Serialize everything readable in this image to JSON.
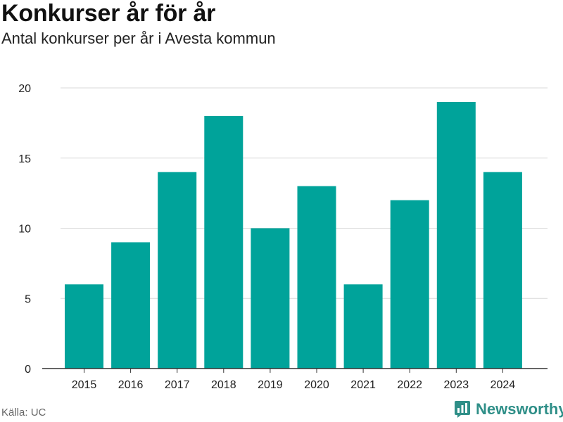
{
  "title": "Konkurser år för år",
  "subtitle": "Antal konkurser per år i Avesta kommun",
  "source": "Källa: UC",
  "brand": {
    "name": "Newsworthy",
    "icon": "bar-chart-logo-icon"
  },
  "colors": {
    "bar": "#00a39a",
    "grid": "#d9d9d9",
    "axis": "#333333",
    "brand": "#2f8f88"
  },
  "chart_data": {
    "type": "bar",
    "categories": [
      "2015",
      "2016",
      "2017",
      "2018",
      "2019",
      "2020",
      "2021",
      "2022",
      "2023",
      "2024"
    ],
    "values": [
      6,
      9,
      14,
      18,
      10,
      13,
      6,
      12,
      19,
      14
    ],
    "ylim": [
      0,
      20
    ],
    "yticks": [
      0,
      5,
      10,
      15,
      20
    ],
    "grid": true,
    "legend": "none"
  }
}
